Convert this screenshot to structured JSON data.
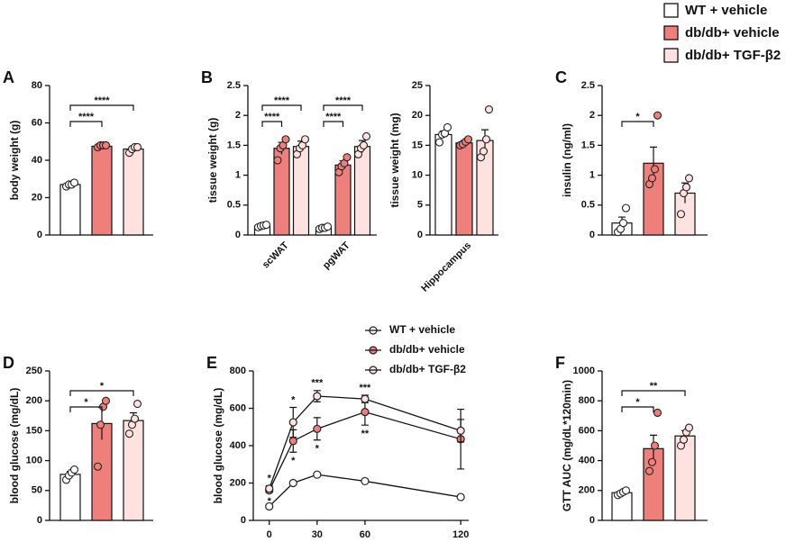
{
  "legend": [
    {
      "name": "WT + vehicle",
      "color": "#ffffff"
    },
    {
      "name": "db/db+ vehicle",
      "color": "#ef7f7b"
    },
    {
      "name": "db/db+ TGF-β2",
      "color": "#fde2e0"
    }
  ],
  "chart_data": [
    {
      "type": "bar",
      "label": "A",
      "ylabel": "body weight (g)",
      "ylim": [
        0,
        80
      ],
      "yticks": [
        0,
        20,
        40,
        60,
        80
      ],
      "categories": [
        null
      ],
      "series": [
        {
          "values": [
            27
          ],
          "errors": [
            1
          ],
          "points": [
            [
              26,
              27,
              27,
              28
            ]
          ]
        },
        {
          "values": [
            47.5
          ],
          "errors": [
            0.5
          ],
          "points": [
            [
              47,
              48,
              48,
              48
            ]
          ]
        },
        {
          "values": [
            46
          ],
          "errors": [
            1.3
          ],
          "points": [
            [
              44,
              46,
              47,
              47
            ]
          ]
        }
      ],
      "brackets": [
        {
          "label": "****",
          "from": 0,
          "to": 1
        },
        {
          "label": "****",
          "from": 0,
          "to": 2
        }
      ]
    },
    {
      "type": "bar",
      "label": "B",
      "ylabel": "tissue weight (g)",
      "ylim": [
        0,
        2.5
      ],
      "yticks": [
        0,
        0.5,
        1,
        1.5,
        2,
        2.5
      ],
      "categories": [
        "scWAT",
        "pgWAT"
      ],
      "series": [
        {
          "values": [
            0.15,
            0.12
          ],
          "errors": [
            0.02,
            0.02
          ],
          "points": [
            [
              0.13,
              0.15,
              0.16,
              0.17
            ],
            [
              0.1,
              0.12,
              0.12,
              0.14
            ]
          ]
        },
        {
          "values": [
            1.45,
            1.17
          ],
          "errors": [
            0.1,
            0.07
          ],
          "points": [
            [
              1.25,
              1.45,
              1.5,
              1.6
            ],
            [
              1.05,
              1.15,
              1.2,
              1.3
            ]
          ]
        },
        {
          "values": [
            1.48,
            1.48
          ],
          "errors": [
            0.09,
            0.1
          ],
          "points": [
            [
              1.35,
              1.45,
              1.5,
              1.6
            ],
            [
              1.35,
              1.45,
              1.5,
              1.65
            ]
          ]
        }
      ],
      "brackets": [
        {
          "label": "****",
          "from": 0,
          "to": 1
        },
        {
          "label": "****",
          "from": 0,
          "to": 2
        },
        {
          "label": "****",
          "from": 3,
          "to": 4
        },
        {
          "label": "****",
          "from": 3,
          "to": 5
        }
      ]
    },
    {
      "type": "bar",
      "ylabel": "tissue weight (mg)",
      "ylim": [
        0,
        25
      ],
      "yticks": [
        0,
        5,
        10,
        15,
        20,
        25
      ],
      "categories": [
        "Hippocampus"
      ],
      "series": [
        {
          "values": [
            16.8
          ],
          "errors": [
            0.6
          ],
          "points": [
            [
              15.5,
              16.8,
              17,
              18
            ]
          ]
        },
        {
          "values": [
            15.4
          ],
          "errors": [
            0.4
          ],
          "points": [
            [
              15,
              15.2,
              15.6,
              16
            ]
          ]
        },
        {
          "values": [
            15.8
          ],
          "errors": [
            1.8
          ],
          "points": [
            [
              13,
              14,
              16,
              21
            ]
          ]
        }
      ],
      "brackets": []
    },
    {
      "type": "bar",
      "label": "C",
      "ylabel": "insulin (ng/ml)",
      "ylim": [
        0,
        2.5
      ],
      "yticks": [
        0,
        0.5,
        1,
        1.5,
        2,
        2.5
      ],
      "categories": [
        null
      ],
      "series": [
        {
          "values": [
            0.2
          ],
          "errors": [
            0.1
          ],
          "points": [
            [
              0.05,
              0.1,
              0.2,
              0.45
            ]
          ]
        },
        {
          "values": [
            1.2
          ],
          "errors": [
            0.27
          ],
          "points": [
            [
              0.85,
              0.95,
              1.1,
              2
            ]
          ]
        },
        {
          "values": [
            0.7
          ],
          "errors": [
            0.17
          ],
          "points": [
            [
              0.35,
              0.7,
              0.8,
              0.95
            ]
          ]
        }
      ],
      "brackets": [
        {
          "label": "*",
          "from": 0,
          "to": 1
        }
      ]
    },
    {
      "type": "bar",
      "label": "D",
      "ylabel": "blood glucose (mg/dL)",
      "ylim": [
        0,
        250
      ],
      "yticks": [
        0,
        50,
        100,
        150,
        200,
        250
      ],
      "categories": [
        null
      ],
      "series": [
        {
          "values": [
            77
          ],
          "errors": [
            5
          ],
          "points": [
            [
              68,
              75,
              80,
              85
            ]
          ]
        },
        {
          "values": [
            162
          ],
          "errors": [
            27
          ],
          "points": [
            [
              90,
              160,
              190,
              200
            ]
          ]
        },
        {
          "values": [
            167
          ],
          "errors": [
            13
          ],
          "points": [
            [
              145,
              160,
              170,
              195
            ]
          ]
        }
      ],
      "brackets": [
        {
          "label": "*",
          "from": 0,
          "to": 1
        },
        {
          "label": "*",
          "from": 0,
          "to": 2
        }
      ]
    },
    {
      "type": "line",
      "label": "E",
      "ylabel": "blood glucose (mg/dL)",
      "xlim": [
        -10,
        125
      ],
      "xticks": [
        0,
        30,
        60,
        120
      ],
      "ylim": [
        0,
        800
      ],
      "yticks": [
        0,
        200,
        400,
        600,
        800
      ],
      "x": [
        0,
        15,
        30,
        60,
        120
      ],
      "series": [
        {
          "name": "WT + vehicle",
          "color": "#ffffff",
          "values": [
            75,
            200,
            245,
            210,
            125
          ],
          "errors": [
            5,
            5,
            5,
            5,
            5
          ],
          "point_labels": [
            null,
            null,
            null,
            null,
            null
          ]
        },
        {
          "name": "db/db+ vehicle",
          "color": "#ef7f7b",
          "values": [
            160,
            425,
            490,
            580,
            435
          ],
          "errors": [
            10,
            60,
            60,
            70,
            160
          ],
          "point_labels": [
            "*",
            "*",
            "*",
            "**",
            null
          ]
        },
        {
          "name": "db/db+ TGF-β2",
          "color": "#fde2e0",
          "values": [
            170,
            525,
            665,
            650,
            480
          ],
          "errors": [
            15,
            80,
            30,
            20,
            60
          ],
          "point_labels": [
            "*",
            "*",
            "***",
            "***",
            null
          ]
        }
      ]
    },
    {
      "type": "bar",
      "label": "F",
      "ylabel": "GTT AUC (mg/dL*120min)",
      "ylim": [
        0,
        1000
      ],
      "yticks": [
        0,
        200,
        400,
        600,
        800,
        1000
      ],
      "categories": [
        null
      ],
      "series": [
        {
          "values": [
            185
          ],
          "errors": [
            10
          ],
          "points": [
            [
              170,
              180,
              190,
              200
            ]
          ]
        },
        {
          "values": [
            480
          ],
          "errors": [
            90
          ],
          "points": [
            [
              330,
              390,
              500,
              720
            ]
          ]
        },
        {
          "values": [
            565
          ],
          "errors": [
            35
          ],
          "points": [
            [
              500,
              540,
              590,
              620
            ]
          ]
        }
      ],
      "brackets": [
        {
          "label": "*",
          "from": 0,
          "to": 1
        },
        {
          "label": "**",
          "from": 0,
          "to": 2
        }
      ]
    }
  ]
}
